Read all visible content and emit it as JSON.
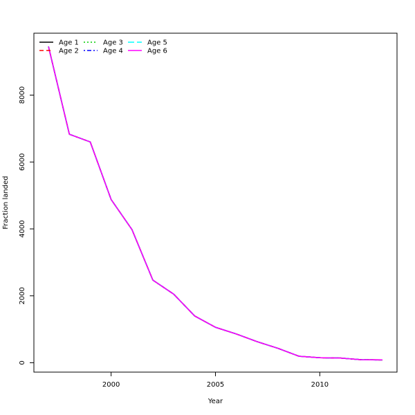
{
  "chart_data": {
    "type": "line",
    "title": "",
    "xlabel": "Year",
    "ylabel": "Fraction landed",
    "xlim": [
      1996.3,
      2013.7
    ],
    "ylim": [
      -280,
      9850
    ],
    "x_ticks": [
      2000,
      2005,
      2010
    ],
    "y_ticks": [
      0,
      2000,
      4000,
      6000,
      8000
    ],
    "grid": false,
    "legend_position": "top-left",
    "x": [
      1997,
      1998,
      1999,
      2000,
      2001,
      2002,
      2003,
      2004,
      2005,
      2006,
      2007,
      2008,
      2009,
      2010,
      2011,
      2012,
      2013
    ],
    "series": [
      {
        "name": "Age 1",
        "color": "#000000",
        "dash": "solid",
        "values": [
          9450,
          6830,
          6600,
          4880,
          3980,
          2470,
          2050,
          1400,
          1060,
          860,
          630,
          430,
          195,
          150,
          140,
          90,
          85
        ]
      },
      {
        "name": "Age 2",
        "color": "#ff0000",
        "dash": "dashed",
        "values": [
          9450,
          6830,
          6600,
          4880,
          3980,
          2470,
          2050,
          1400,
          1060,
          860,
          630,
          430,
          195,
          150,
          140,
          90,
          85
        ]
      },
      {
        "name": "Age 3",
        "color": "#00cd00",
        "dash": "dotted",
        "values": [
          9450,
          6830,
          6600,
          4880,
          3980,
          2470,
          2050,
          1400,
          1060,
          860,
          630,
          430,
          195,
          150,
          140,
          90,
          85
        ]
      },
      {
        "name": "Age 4",
        "color": "#0000ff",
        "dash": "dotdash",
        "values": [
          9450,
          6830,
          6600,
          4880,
          3980,
          2470,
          2050,
          1400,
          1060,
          860,
          630,
          430,
          195,
          150,
          140,
          90,
          85
        ]
      },
      {
        "name": "Age 5",
        "color": "#00ffff",
        "dash": "longdash",
        "values": [
          9450,
          6830,
          6600,
          4880,
          3980,
          2470,
          2050,
          1400,
          1060,
          860,
          630,
          430,
          195,
          150,
          140,
          90,
          85
        ]
      },
      {
        "name": "Age 6",
        "color": "#ff00ff",
        "dash": "solid",
        "values": [
          9450,
          6830,
          6600,
          4880,
          3980,
          2470,
          2050,
          1400,
          1060,
          860,
          630,
          430,
          195,
          150,
          140,
          90,
          85
        ]
      }
    ]
  }
}
